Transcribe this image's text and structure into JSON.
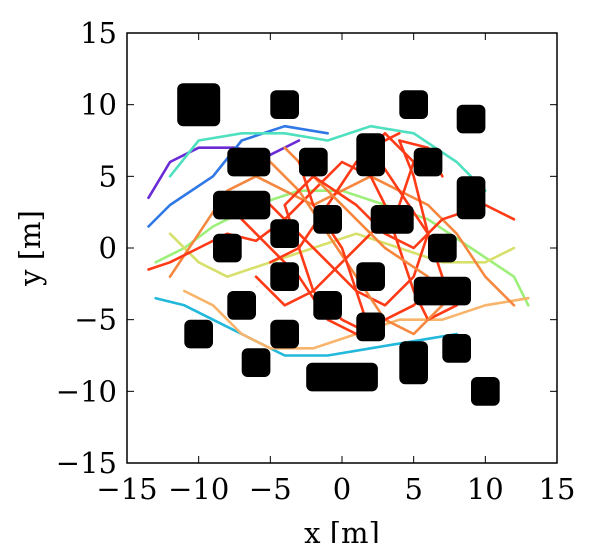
{
  "chart_data": {
    "type": "scatter",
    "title": "",
    "xlabel": "x [m]",
    "ylabel": "y [m]",
    "xlim": [
      -15,
      15
    ],
    "ylim": [
      -15,
      15
    ],
    "xticks": [
      -15,
      -10,
      -5,
      0,
      5,
      10,
      15
    ],
    "yticks": [
      -15,
      -10,
      -5,
      0,
      5,
      10,
      15
    ],
    "xtick_labels": [
      "−15",
      "−10",
      "−5",
      "0",
      "5",
      "10",
      "15"
    ],
    "ytick_labels": [
      "−15",
      "−10",
      "−5",
      "0",
      "5",
      "10",
      "15"
    ],
    "grid": false,
    "legend": "none",
    "obstacle_color": "#000000",
    "trajectory_colors": [
      "#6a2bd6",
      "#2f78e6",
      "#22b8dc",
      "#4fe0c0",
      "#9cf07a",
      "#d7e06a",
      "#f7b46a",
      "#f6873f",
      "#ff3a16"
    ],
    "obstacles": [
      {
        "cx": -10,
        "cy": 10,
        "w": 3.0,
        "h": 3.0
      },
      {
        "cx": -4,
        "cy": 10,
        "w": 2.0,
        "h": 2.0
      },
      {
        "cx": 5,
        "cy": 10,
        "w": 2.0,
        "h": 2.0
      },
      {
        "cx": 9,
        "cy": 9,
        "w": 2.0,
        "h": 2.0
      },
      {
        "cx": -6.5,
        "cy": 6,
        "w": 3.0,
        "h": 2.0
      },
      {
        "cx": -2,
        "cy": 6,
        "w": 2.0,
        "h": 2.0
      },
      {
        "cx": 2,
        "cy": 6.5,
        "w": 2.0,
        "h": 3.0
      },
      {
        "cx": 6,
        "cy": 6,
        "w": 2.0,
        "h": 2.0
      },
      {
        "cx": -7,
        "cy": 3,
        "w": 4.0,
        "h": 2.0
      },
      {
        "cx": 9,
        "cy": 3.5,
        "w": 2.0,
        "h": 3.0
      },
      {
        "cx": -1,
        "cy": 2,
        "w": 2.0,
        "h": 2.0
      },
      {
        "cx": 3.5,
        "cy": 2,
        "w": 3.0,
        "h": 2.0
      },
      {
        "cx": -8,
        "cy": 0,
        "w": 2.0,
        "h": 2.0
      },
      {
        "cx": -4,
        "cy": 1,
        "w": 2.0,
        "h": 2.0
      },
      {
        "cx": 7,
        "cy": 0,
        "w": 2.0,
        "h": 2.0
      },
      {
        "cx": -4,
        "cy": -2,
        "w": 2.0,
        "h": 2.0
      },
      {
        "cx": 2,
        "cy": -2,
        "w": 2.0,
        "h": 2.0
      },
      {
        "cx": 7,
        "cy": -3,
        "w": 4.0,
        "h": 2.0
      },
      {
        "cx": -7,
        "cy": -4,
        "w": 2.0,
        "h": 2.0
      },
      {
        "cx": -1,
        "cy": -4,
        "w": 2.0,
        "h": 2.0
      },
      {
        "cx": -10,
        "cy": -6,
        "w": 2.0,
        "h": 2.0
      },
      {
        "cx": -4,
        "cy": -6,
        "w": 2.0,
        "h": 2.0
      },
      {
        "cx": 2,
        "cy": -5.5,
        "w": 2.0,
        "h": 2.0
      },
      {
        "cx": -6,
        "cy": -8,
        "w": 2.0,
        "h": 2.0
      },
      {
        "cx": 0,
        "cy": -9,
        "w": 5.0,
        "h": 2.0
      },
      {
        "cx": 5,
        "cy": -8,
        "w": 2.0,
        "h": 3.0
      },
      {
        "cx": 8,
        "cy": -7,
        "w": 2.0,
        "h": 2.0
      },
      {
        "cx": 10,
        "cy": -10,
        "w": 2.0,
        "h": 2.0
      }
    ],
    "series": [
      {
        "color": "#6a2bd6",
        "points": [
          [
            -13.5,
            3.5
          ],
          [
            -12,
            6
          ],
          [
            -10,
            7
          ],
          [
            -7.5,
            7
          ],
          [
            -5,
            6.5
          ],
          [
            -3,
            7.5
          ]
        ]
      },
      {
        "color": "#2f78e6",
        "points": [
          [
            -13.5,
            1.5
          ],
          [
            -12,
            3
          ],
          [
            -9,
            5
          ],
          [
            -7,
            7.5
          ],
          [
            -4,
            8.5
          ],
          [
            -1,
            8
          ]
        ]
      },
      {
        "color": "#22b8dc",
        "points": [
          [
            -13,
            -3.5
          ],
          [
            -11,
            -4
          ],
          [
            -9,
            -5
          ],
          [
            -7,
            -6
          ],
          [
            -4,
            -7.5
          ],
          [
            -1,
            -7.5
          ],
          [
            2,
            -7
          ],
          [
            5,
            -6.5
          ],
          [
            8,
            -6
          ]
        ]
      },
      {
        "color": "#4fe0c0",
        "points": [
          [
            -12,
            5
          ],
          [
            -10,
            7.5
          ],
          [
            -7,
            8
          ],
          [
            -4,
            8
          ],
          [
            -1,
            7.5
          ],
          [
            2,
            8.5
          ],
          [
            5,
            8
          ],
          [
            8,
            6
          ],
          [
            10,
            4
          ]
        ]
      },
      {
        "color": "#9cf07a",
        "points": [
          [
            -13,
            -1
          ],
          [
            -11,
            0
          ],
          [
            -9,
            1.5
          ],
          [
            -6,
            3
          ],
          [
            -3,
            4
          ],
          [
            0,
            4
          ],
          [
            3,
            3
          ],
          [
            6,
            2
          ],
          [
            9,
            0
          ],
          [
            12,
            -2
          ],
          [
            13,
            -4
          ]
        ]
      },
      {
        "color": "#d7e06a",
        "points": [
          [
            -12,
            1
          ],
          [
            -10,
            -1
          ],
          [
            -8,
            -2
          ],
          [
            -5,
            -1
          ],
          [
            -2,
            0
          ],
          [
            1,
            1
          ],
          [
            4,
            0
          ],
          [
            7,
            -1
          ],
          [
            10,
            -1
          ],
          [
            12,
            0
          ]
        ]
      },
      {
        "color": "#f7b46a",
        "points": [
          [
            -11,
            -3
          ],
          [
            -9,
            -4
          ],
          [
            -7,
            -6
          ],
          [
            -5,
            -7
          ],
          [
            -2,
            -7
          ],
          [
            1,
            -6
          ],
          [
            4,
            -5
          ],
          [
            7,
            -5
          ],
          [
            10,
            -4
          ],
          [
            13,
            -3.5
          ]
        ]
      },
      {
        "color": "#f6873f",
        "points": [
          [
            -12,
            -2
          ],
          [
            -10,
            1
          ],
          [
            -8,
            4
          ],
          [
            -6,
            5
          ],
          [
            -4,
            4
          ],
          [
            -2,
            3
          ],
          [
            0,
            4
          ],
          [
            2,
            5
          ],
          [
            4,
            4
          ],
          [
            6,
            3
          ],
          [
            8,
            1
          ],
          [
            10,
            -2
          ],
          [
            12,
            -4
          ]
        ]
      },
      {
        "color": "#ff3a16",
        "points": [
          [
            -13.5,
            -1.5
          ],
          [
            -12,
            -1
          ],
          [
            -10,
            0
          ],
          [
            -8,
            1
          ],
          [
            -6,
            0.5
          ],
          [
            -4,
            2
          ],
          [
            -2,
            4
          ],
          [
            0,
            6
          ],
          [
            2,
            5
          ],
          [
            3,
            3
          ],
          [
            4,
            0
          ],
          [
            5,
            -3
          ],
          [
            6,
            -5
          ],
          [
            8,
            -4
          ]
        ]
      },
      {
        "color": "#ff3a16",
        "points": [
          [
            -5,
            3
          ],
          [
            -3,
            1
          ],
          [
            -1,
            -1
          ],
          [
            1,
            -3
          ],
          [
            3,
            -4
          ],
          [
            5,
            -2
          ],
          [
            6,
            1
          ],
          [
            5,
            5
          ],
          [
            4,
            7.5
          ],
          [
            6,
            7
          ],
          [
            7,
            5
          ]
        ]
      },
      {
        "color": "#ff3a16",
        "points": [
          [
            -6,
            -2
          ],
          [
            -4,
            -4
          ],
          [
            -2,
            -3
          ],
          [
            0,
            -1
          ],
          [
            2,
            1
          ],
          [
            4,
            3
          ],
          [
            5,
            6
          ],
          [
            3,
            8
          ],
          [
            1,
            6
          ],
          [
            -1,
            3
          ],
          [
            -3,
            0
          ],
          [
            -5,
            -1
          ]
        ]
      },
      {
        "color": "#f6873f",
        "points": [
          [
            -5,
            6
          ],
          [
            -3,
            4
          ],
          [
            -1,
            1
          ],
          [
            1,
            -2
          ],
          [
            3,
            -5
          ],
          [
            5,
            -6
          ],
          [
            7,
            -4
          ],
          [
            6,
            -2
          ],
          [
            3,
            0
          ],
          [
            1,
            2
          ],
          [
            -2,
            5
          ],
          [
            -4,
            7
          ]
        ]
      },
      {
        "color": "#ff3a16",
        "points": [
          [
            -7,
            2
          ],
          [
            -5,
            0
          ],
          [
            -3,
            -2
          ],
          [
            -1,
            -5
          ],
          [
            1,
            -6
          ],
          [
            3,
            -5
          ],
          [
            5,
            -4
          ],
          [
            7,
            -2
          ],
          [
            6,
            1
          ],
          [
            4,
            4
          ],
          [
            2,
            7
          ],
          [
            4,
            8
          ]
        ]
      },
      {
        "color": "#ff3a16",
        "points": [
          [
            -3,
            6
          ],
          [
            -2,
            3
          ],
          [
            0,
            0
          ],
          [
            1,
            -3
          ],
          [
            2,
            -6
          ],
          [
            0,
            -5
          ],
          [
            -2,
            -3
          ],
          [
            -3,
            0
          ],
          [
            -4,
            3
          ],
          [
            -2,
            5
          ],
          [
            1,
            3
          ],
          [
            3,
            1
          ],
          [
            5,
            0
          ],
          [
            7,
            2
          ],
          [
            10,
            3
          ],
          [
            12,
            2
          ]
        ]
      }
    ]
  }
}
